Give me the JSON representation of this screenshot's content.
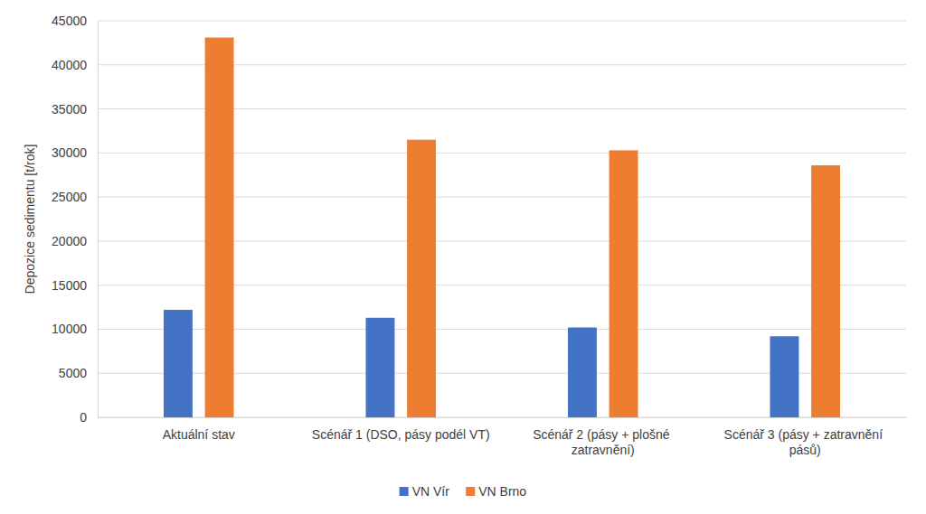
{
  "chart_data": {
    "type": "bar",
    "y_label": "Depozice sedimentu [t/rok]",
    "categories": [
      "Aktuální stav",
      "Scénář 1 (DSO, pásy podél VT)",
      "Scénář 2 (pásy + plošné zatravnění)",
      "Scénář 3 (pásy + zatravnění pásů)"
    ],
    "series": [
      {
        "name": "VN Vír",
        "color": "#4472c4",
        "values": [
          12200,
          11300,
          10200,
          9200
        ]
      },
      {
        "name": "VN Brno",
        "color": "#ed7d31",
        "values": [
          43100,
          31500,
          30300,
          28600
        ]
      }
    ],
    "ylim": [
      0,
      45000
    ],
    "yticks": [
      0,
      5000,
      10000,
      15000,
      20000,
      25000,
      30000,
      35000,
      40000,
      45000
    ],
    "grid": true,
    "legend": "bottom"
  }
}
